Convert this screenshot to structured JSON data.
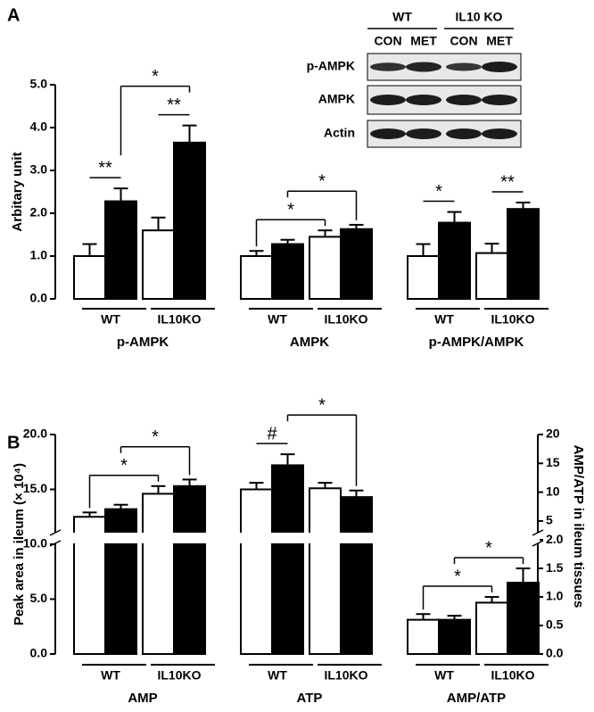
{
  "chart_data": [
    {
      "type": "bar",
      "panel": "A",
      "ylabel": "Arbitary unit",
      "categories": [
        "WT",
        "IL10KO",
        "WT",
        "IL10KO",
        "WT",
        "IL10KO"
      ],
      "groups": [
        "p-AMPK",
        "AMPK",
        "p-AMPK/AMPK"
      ],
      "series": [
        {
          "color": "#ffffff",
          "values": [
            1.0,
            1.6,
            1.0,
            1.45,
            1.0,
            1.07
          ],
          "errors": [
            0.28,
            0.3,
            0.12,
            0.15,
            0.28,
            0.22
          ]
        },
        {
          "color": "#000000",
          "values": [
            2.28,
            3.65,
            1.28,
            1.63,
            1.78,
            2.1
          ],
          "errors": [
            0.3,
            0.4,
            0.1,
            0.1,
            0.25,
            0.15
          ]
        }
      ],
      "ylim": [
        0,
        5
      ],
      "yticks": [
        {
          "value": 0,
          "label": "0.0"
        },
        {
          "value": 1,
          "label": "1.0"
        },
        {
          "value": 2,
          "label": "2.0"
        },
        {
          "value": 3,
          "label": "3.0"
        },
        {
          "value": 4,
          "label": "4.0"
        },
        {
          "value": 5,
          "label": "5.0"
        }
      ],
      "brackets": [
        {
          "label": "**",
          "from": [
            0,
            0
          ],
          "to": [
            1,
            0
          ]
        },
        {
          "label": "**",
          "from": [
            0,
            1
          ],
          "to": [
            1,
            1
          ]
        },
        {
          "label": "*",
          "from": [
            1,
            0
          ],
          "to": [
            1,
            1
          ]
        },
        {
          "label": "*",
          "from": [
            0,
            2
          ],
          "to": [
            0,
            3
          ]
        },
        {
          "label": "*",
          "from": [
            1,
            2
          ],
          "to": [
            1,
            3
          ]
        },
        {
          "label": "*",
          "from": [
            0,
            4
          ],
          "to": [
            1,
            4
          ]
        },
        {
          "label": "**",
          "from": [
            0,
            5
          ],
          "to": [
            1,
            5
          ]
        }
      ],
      "blot": {
        "groups": [
          "WT",
          "IL10 KO"
        ],
        "lanes": [
          "CON",
          "MET",
          "CON",
          "MET"
        ],
        "rows": [
          "p-AMPK",
          "AMPK",
          "Actin"
        ]
      }
    },
    {
      "type": "bar",
      "panel": "B",
      "ylabel": "Peak area in ileum (× 10⁴)",
      "y2label": "AMP/ATP in ileum tissues",
      "categories": [
        "WT",
        "IL10KO",
        "WT",
        "IL10KO",
        "WT",
        "IL10KO"
      ],
      "groups": [
        "AMP",
        "ATP",
        "AMP/ATP"
      ],
      "series": [
        {
          "color": "#ffffff",
          "values": [
            12.5,
            14.6,
            15.0,
            15.1,
            null,
            null
          ],
          "errors": [
            0.4,
            0.7,
            0.6,
            0.5,
            null,
            null
          ]
        },
        {
          "color": "#000000",
          "values": [
            13.2,
            15.3,
            17.2,
            14.3,
            null,
            null
          ],
          "errors": [
            0.4,
            0.6,
            1.0,
            0.6,
            null,
            null
          ]
        },
        {
          "color": "#ffffff",
          "axis": "y2",
          "values": [
            null,
            null,
            null,
            null,
            0.6,
            0.9
          ],
          "errors": [
            null,
            null,
            null,
            null,
            0.1,
            0.1
          ]
        },
        {
          "color": "#000000",
          "axis": "y2",
          "values": [
            null,
            null,
            null,
            null,
            0.6,
            1.25
          ],
          "errors": [
            null,
            null,
            null,
            null,
            0.07,
            0.25
          ]
        }
      ],
      "ylim": [
        0,
        20
      ],
      "yticks": [
        {
          "value": 0,
          "label": "0.0"
        },
        {
          "value": 5,
          "label": "5.0"
        },
        {
          "value": 10,
          "label": "10.0"
        },
        {
          "value": 15,
          "label": "15.0"
        },
        {
          "value": 20,
          "label": "20.0"
        }
      ],
      "y2lim": [
        0,
        20
      ],
      "y2break": [
        2,
        5
      ],
      "y2ticks": [
        {
          "value": 0,
          "label": "0.0"
        },
        {
          "value": 0.5,
          "label": "0.5"
        },
        {
          "value": 1,
          "label": "1.0"
        },
        {
          "value": 1.5,
          "label": "1.5"
        },
        {
          "value": 2,
          "label": "2.0"
        },
        5,
        10,
        15,
        20
      ],
      "brackets": [
        {
          "label": "*",
          "from": [
            0,
            0
          ],
          "to": [
            0,
            1
          ]
        },
        {
          "label": "*",
          "from": [
            1,
            0
          ],
          "to": [
            1,
            1
          ]
        },
        {
          "label": "#",
          "from": [
            0,
            2
          ],
          "to": [
            1,
            2
          ]
        },
        {
          "label": "*",
          "from": [
            1,
            2
          ],
          "to": [
            1,
            3
          ]
        },
        {
          "label": "*",
          "from": [
            2,
            4
          ],
          "to": [
            2,
            5
          ]
        },
        {
          "label": "*",
          "from": [
            3,
            4
          ],
          "to": [
            3,
            5
          ]
        }
      ]
    }
  ]
}
